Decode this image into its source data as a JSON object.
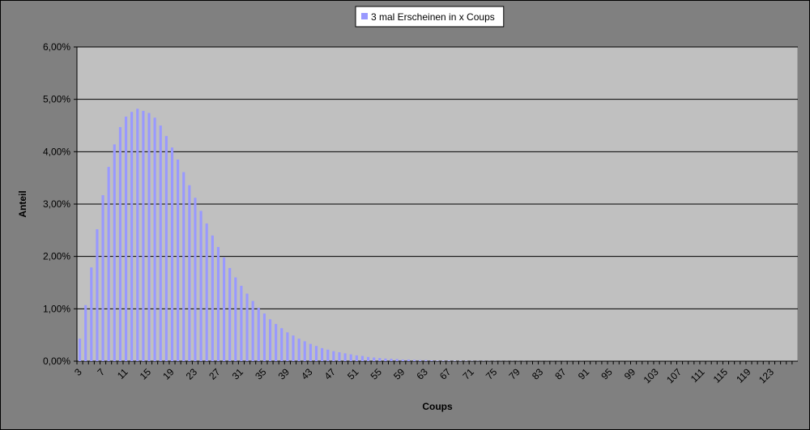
{
  "chart_data": {
    "type": "bar",
    "xlabel": "Coups",
    "ylabel": "Anteil",
    "categories": [
      "3",
      null,
      null,
      null,
      "7",
      null,
      null,
      null,
      "11",
      null,
      null,
      null,
      "15",
      null,
      null,
      null,
      "19",
      null,
      null,
      null,
      "23",
      null,
      null,
      null,
      "27",
      null,
      null,
      null,
      "31",
      null,
      null,
      null,
      "35",
      null,
      null,
      null,
      "39",
      null,
      null,
      null,
      "43",
      null,
      null,
      null,
      "47",
      null,
      null,
      null,
      "51",
      null,
      null,
      null,
      "55",
      null,
      null,
      null,
      "59",
      null,
      null,
      null,
      "63",
      null,
      null,
      null,
      "67",
      null,
      null,
      null,
      "71",
      null,
      null,
      null,
      "75",
      null,
      null,
      null,
      "79",
      null,
      null,
      null,
      "83",
      null,
      null,
      null,
      "87",
      null,
      null,
      null,
      "91",
      null,
      null,
      null,
      "95",
      null,
      null,
      null,
      "99",
      null,
      null,
      null,
      "103",
      null,
      null,
      null,
      "107",
      null,
      null,
      null,
      "111",
      null,
      null,
      null,
      "115",
      null,
      null,
      null,
      "119",
      null,
      null,
      null,
      "123",
      null,
      null,
      null,
      null
    ],
    "series": [
      {
        "name": "3 mal Erscheinen in x Coups",
        "color": "#9999ff",
        "values": [
          0.43,
          1.07,
          1.79,
          2.52,
          3.17,
          3.71,
          4.14,
          4.47,
          4.67,
          4.76,
          4.82,
          4.78,
          4.74,
          4.65,
          4.5,
          4.3,
          4.08,
          3.85,
          3.61,
          3.36,
          3.12,
          2.87,
          2.63,
          2.4,
          2.18,
          1.98,
          1.78,
          1.6,
          1.44,
          1.29,
          1.15,
          1.02,
          0.91,
          0.8,
          0.71,
          0.63,
          0.55,
          0.49,
          0.43,
          0.38,
          0.33,
          0.29,
          0.25,
          0.22,
          0.19,
          0.17,
          0.15,
          0.13,
          0.11,
          0.1,
          0.08,
          0.07,
          0.06,
          0.05,
          0.045,
          0.04,
          0.03,
          0.03,
          0.025,
          0.02,
          0.02,
          0.015,
          0.01,
          0.01,
          0.01,
          0.008,
          0.007,
          0.006,
          0.005,
          0.004,
          0.004,
          0.003,
          0.003,
          0.002,
          0.002,
          0.002,
          0.002,
          0.002,
          0.001,
          0.001,
          0.001,
          0.001,
          0.001,
          0.001,
          0.001,
          0.001,
          0.001,
          0.001,
          0,
          0,
          0,
          0,
          0,
          0,
          0,
          0,
          0,
          0,
          0,
          0,
          0,
          0,
          0,
          0,
          0,
          0,
          0,
          0,
          0,
          0,
          0,
          0,
          0,
          0,
          0,
          0,
          0,
          0,
          0,
          0,
          0,
          0,
          0,
          0,
          0
        ]
      }
    ],
    "ylim": [
      0,
      6
    ],
    "yticks": [
      {
        "value": 0,
        "label": "0,00%"
      },
      {
        "value": 1,
        "label": "1,00%"
      },
      {
        "value": 2,
        "label": "2,00%"
      },
      {
        "value": 3,
        "label": "3,00%"
      },
      {
        "value": 4,
        "label": "4,00%"
      },
      {
        "value": 5,
        "label": "5,00%"
      },
      {
        "value": 6,
        "label": "6,00%"
      }
    ],
    "grid": true,
    "plot_background": "#c0c0c0",
    "legend": "top"
  }
}
